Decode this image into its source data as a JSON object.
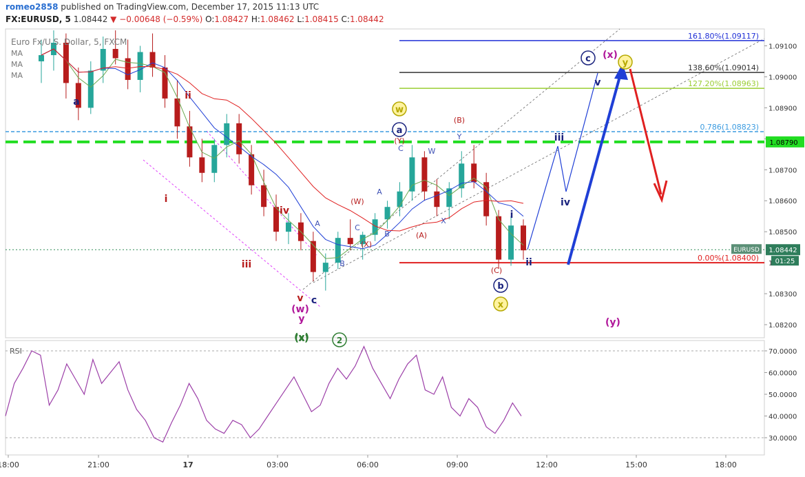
{
  "header": {
    "author": "romeo2858",
    "published": "published on TradingView.com, December 17, 2015 11:13 UTC",
    "symbol": "FX:EURUSD, 5",
    "last": "1.08442",
    "arrow": "▼",
    "change": "−0.00648 (−0.59%)",
    "o_label": "O:",
    "o": "1.08427",
    "h_label": "H:",
    "h": "1.08462",
    "l_label": "L:",
    "l": "1.08415",
    "c_label": "C:",
    "c": "1.08442"
  },
  "legend": {
    "name": "Euro Fx/U.S. Dollar, 5, FXCM",
    "ma": [
      "MA",
      "MA",
      "MA"
    ],
    "rsi": "RSI"
  },
  "colors": {
    "up": "#26a69a",
    "down": "#b71c1c",
    "ma_fast": "#6aa84f",
    "ma_mid": "#1f3fd6",
    "ma_slow": "#e02020",
    "rsi": "#9c3fa8",
    "fib_1618": "#1f2fd6",
    "fib_1386": "#333333",
    "fib_1272": "#9acd32",
    "fib_0786": "#3b9be0",
    "fib_0": "#e02020",
    "support": "#22dd22",
    "wave_blue": "#1a237e",
    "wave_red": "#b71c1c",
    "wave_magenta": "#b0179a",
    "wave_olive": "#b5a800"
  },
  "chart_data": [
    {
      "type": "candlestick",
      "title": "Euro Fx/U.S. Dollar, 5, FXCM",
      "xlabel": "",
      "ylabel": "",
      "x_ticks": [
        "18:00",
        "21:00",
        "17",
        "03:00",
        "06:00",
        "09:00",
        "12:00",
        "15:00",
        "18:00"
      ],
      "y_ticks": [
        "1.08200",
        "1.08300",
        "1.08500",
        "1.08600",
        "1.08700",
        "1.08800",
        "1.08900",
        "1.09000",
        "1.09100"
      ],
      "ylim": [
        1.0817,
        1.0918
      ],
      "price_labels": [
        {
          "name": "EURUSD",
          "value": 1.08442,
          "text": "1.08442"
        },
        {
          "name": "timer",
          "value": 1.0841,
          "text": "01:25"
        },
        {
          "name": "support",
          "value": 1.0879,
          "text": "1.08790"
        }
      ],
      "fib_levels": [
        {
          "ratio": "161.80%",
          "value": 1.09117,
          "label": "161.80%(1.09117)"
        },
        {
          "ratio": "138.60%",
          "value": 1.09014,
          "label": "138.60%(1.09014)"
        },
        {
          "ratio": "127.20%",
          "value": 1.08963,
          "label": "127.20%(1.08963)"
        },
        {
          "ratio": "0.786",
          "value": 1.08823,
          "label": "0.786(1.08823)"
        },
        {
          "ratio": "0.00%",
          "value": 1.084,
          "label": "0.00%(1.08400)"
        }
      ],
      "candles_approx": [
        [
          1.0905,
          1.0912,
          1.0898,
          1.0907
        ],
        [
          1.0907,
          1.0915,
          1.0902,
          1.0911
        ],
        [
          1.0911,
          1.0914,
          1.0893,
          1.0898
        ],
        [
          1.0898,
          1.0903,
          1.0886,
          1.089
        ],
        [
          1.089,
          1.0905,
          1.0888,
          1.0902
        ],
        [
          1.0902,
          1.0913,
          1.0898,
          1.0909
        ],
        [
          1.0909,
          1.0915,
          1.0904,
          1.0906
        ],
        [
          1.0906,
          1.0912,
          1.0896,
          1.0899
        ],
        [
          1.0899,
          1.091,
          1.0895,
          1.0908
        ],
        [
          1.0908,
          1.0914,
          1.09,
          1.0903
        ],
        [
          1.0903,
          1.0907,
          1.089,
          1.0893
        ],
        [
          1.0893,
          1.0899,
          1.088,
          1.0884
        ],
        [
          1.0884,
          1.0889,
          1.0871,
          1.0874
        ],
        [
          1.0874,
          1.088,
          1.0866,
          1.0869
        ],
        [
          1.0869,
          1.088,
          1.0866,
          1.0878
        ],
        [
          1.0878,
          1.0888,
          1.0874,
          1.0885
        ],
        [
          1.0885,
          1.0888,
          1.0872,
          1.0875
        ],
        [
          1.0875,
          1.0878,
          1.0862,
          1.0865
        ],
        [
          1.0865,
          1.087,
          1.0855,
          1.0858
        ],
        [
          1.0858,
          1.0862,
          1.0847,
          1.085
        ],
        [
          1.085,
          1.0856,
          1.0846,
          1.0853
        ],
        [
          1.0853,
          1.0856,
          1.0844,
          1.0847
        ],
        [
          1.0847,
          1.085,
          1.0834,
          1.0837
        ],
        [
          1.0837,
          1.0843,
          1.0831,
          1.084
        ],
        [
          1.084,
          1.085,
          1.0838,
          1.0848
        ],
        [
          1.0848,
          1.0854,
          1.0844,
          1.0846
        ],
        [
          1.0846,
          1.085,
          1.0841,
          1.0849
        ],
        [
          1.0849,
          1.0856,
          1.0847,
          1.0854
        ],
        [
          1.0854,
          1.086,
          1.0851,
          1.0858
        ],
        [
          1.0858,
          1.0866,
          1.0855,
          1.0863
        ],
        [
          1.0863,
          1.0878,
          1.086,
          1.0874
        ],
        [
          1.0874,
          1.0876,
          1.086,
          1.0863
        ],
        [
          1.0863,
          1.0867,
          1.0855,
          1.0858
        ],
        [
          1.0858,
          1.0866,
          1.0854,
          1.0864
        ],
        [
          1.0864,
          1.0876,
          1.0861,
          1.0872
        ],
        [
          1.0872,
          1.0878,
          1.0864,
          1.0866
        ],
        [
          1.0866,
          1.0869,
          1.0852,
          1.0855
        ],
        [
          1.0855,
          1.0857,
          1.0838,
          1.0841
        ],
        [
          1.0841,
          1.0855,
          1.0839,
          1.0852
        ],
        [
          1.0852,
          1.0854,
          1.0841,
          1.0844
        ]
      ]
    },
    {
      "type": "line",
      "title": "RSI",
      "xlabel": "",
      "ylabel": "",
      "y_ticks": [
        "30.0000",
        "40.0000",
        "50.0000",
        "60.0000",
        "70.0000"
      ],
      "ylim": [
        24,
        76
      ],
      "series": [
        {
          "name": "RSI",
          "values": [
            40,
            55,
            62,
            70,
            68,
            45,
            52,
            64,
            57,
            50,
            66,
            55,
            60,
            65,
            52,
            43,
            38,
            30,
            28,
            37,
            45,
            55,
            48,
            38,
            34,
            32,
            38,
            36,
            30,
            34,
            40,
            46,
            52,
            58,
            50,
            42,
            45,
            55,
            62,
            57,
            63,
            72,
            62,
            55,
            48,
            57,
            64,
            68,
            52,
            50,
            58,
            44,
            40,
            48,
            44,
            35,
            32,
            38,
            46,
            40
          ]
        }
      ]
    }
  ],
  "annotations": {
    "waves": [
      {
        "text": "a",
        "color": "wave_blue"
      },
      {
        "text": "ii",
        "color": "wave_red"
      },
      {
        "text": "i",
        "color": "wave_red"
      },
      {
        "text": "iii",
        "color": "wave_red"
      },
      {
        "text": "iv",
        "color": "wave_red"
      },
      {
        "text": "v",
        "color": "wave_red"
      },
      {
        "text": "c",
        "color": "wave_blue"
      },
      {
        "text": "(w)",
        "color": "wave_magenta"
      },
      {
        "text": "y",
        "color": "wave_magenta"
      },
      {
        "text": "(x)",
        "color": "#2e7d32"
      },
      {
        "text": "2",
        "color": "#2e7d32"
      },
      {
        "text": "A",
        "color": "#3f51b5"
      },
      {
        "text": "B",
        "color": "#3f51b5"
      },
      {
        "text": "(X)",
        "color": "wave_red"
      },
      {
        "text": "(W)",
        "color": "wave_red"
      },
      {
        "text": "A",
        "color": "#3f51b5"
      },
      {
        "text": "B",
        "color": "#3f51b5"
      },
      {
        "text": "C",
        "color": "#3f51b5"
      },
      {
        "text": "(Y)",
        "color": "wave_red"
      },
      {
        "text": "C",
        "color": "#3f51b5"
      },
      {
        "text": "W",
        "color": "#3f51b5"
      },
      {
        "text": "(A)",
        "color": "wave_red"
      },
      {
        "text": "X",
        "color": "#3f51b5"
      },
      {
        "text": "Y",
        "color": "#3f51b5"
      },
      {
        "text": "(B)",
        "color": "wave_red"
      },
      {
        "text": "(C)",
        "color": "wave_red"
      },
      {
        "text": "i",
        "color": "wave_blue"
      },
      {
        "text": "ii",
        "color": "wave_blue"
      },
      {
        "text": "iii",
        "color": "wave_blue"
      },
      {
        "text": "iv",
        "color": "wave_blue"
      },
      {
        "text": "v",
        "color": "wave_blue"
      },
      {
        "text": "(x)",
        "color": "wave_magenta"
      },
      {
        "text": "(y)",
        "color": "wave_magenta"
      }
    ],
    "circled": [
      {
        "text": "w",
        "color": "wave_olive"
      },
      {
        "text": "a",
        "color": "wave_blue"
      },
      {
        "text": "b",
        "color": "wave_blue"
      },
      {
        "text": "x",
        "color": "wave_olive"
      },
      {
        "text": "c",
        "color": "wave_blue"
      },
      {
        "text": "y",
        "color": "wave_olive"
      }
    ]
  }
}
